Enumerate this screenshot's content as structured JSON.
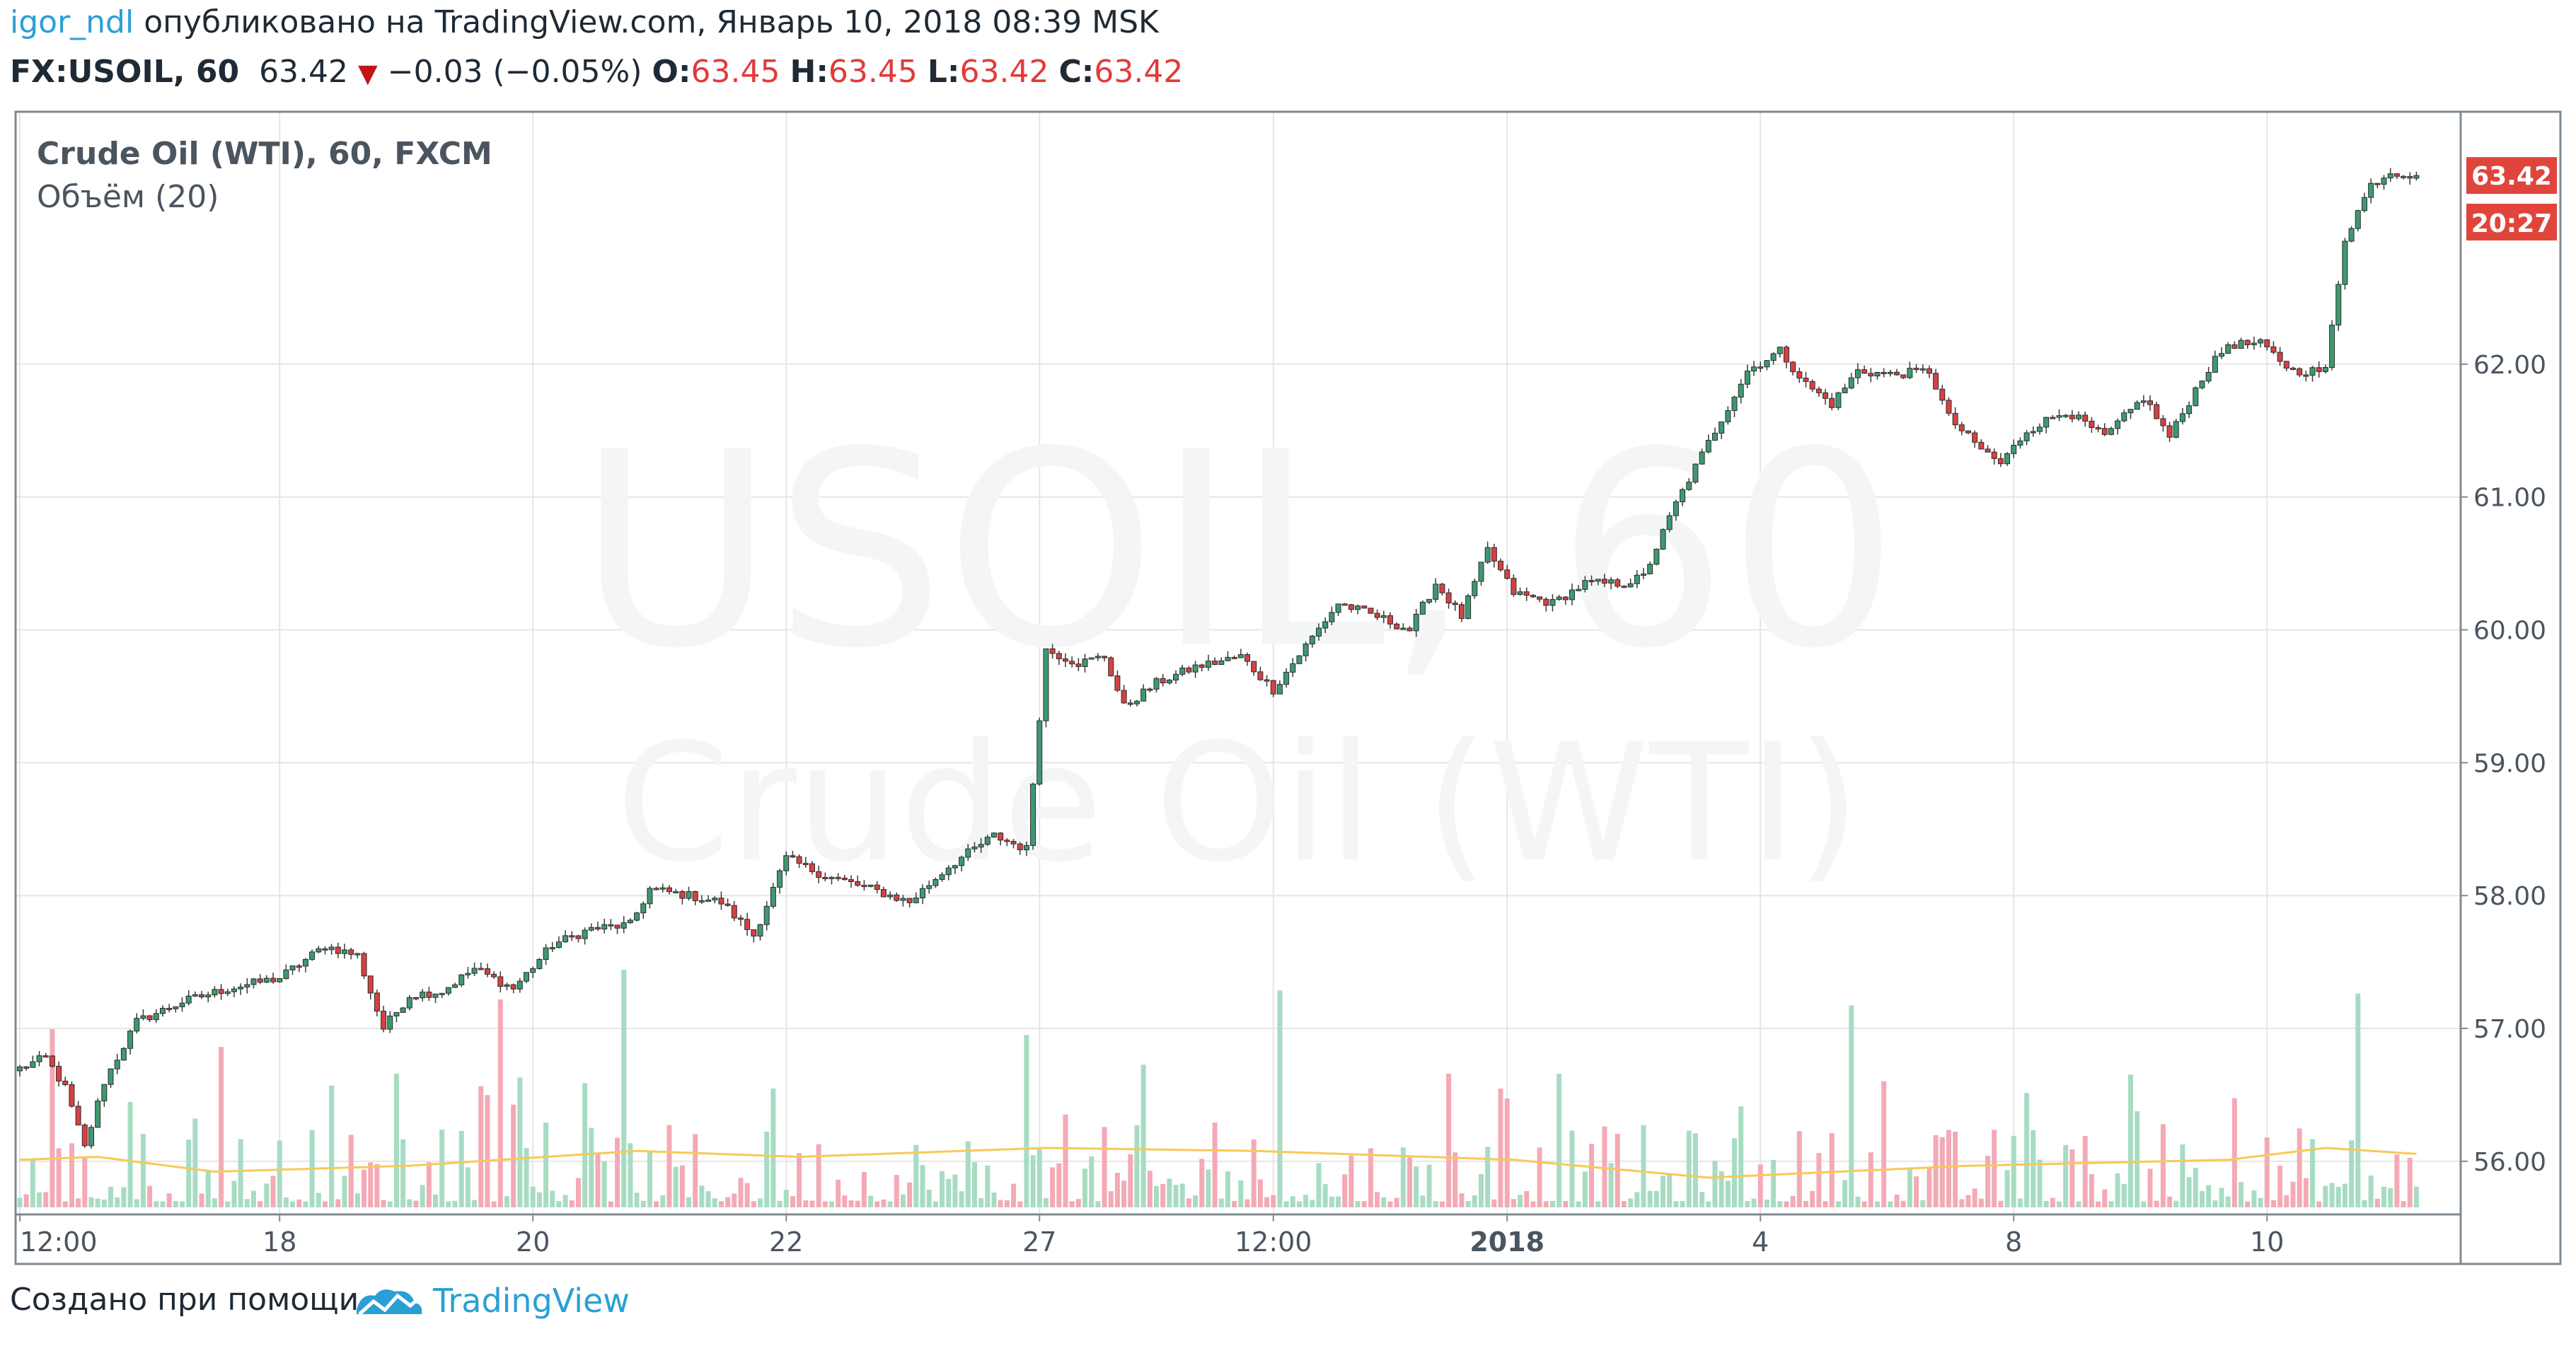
{
  "header": {
    "user": "igor_ndl",
    "published_text": "опубликовано на TradingView.com, Январь 10, 2018 08:39 MSK",
    "symbol": "FX:USOIL, 60",
    "price": "63.42",
    "change": "−0.03 (−0.05%)",
    "o_label": "O:",
    "o_value": "63.45",
    "h_label": "H:",
    "h_value": "63.45",
    "l_label": "L:",
    "l_value": "63.42",
    "c_label": "C:",
    "c_value": "63.42"
  },
  "legend": {
    "title": "Crude Oil (WTI), 60, FXCM",
    "volume": "Объём (20)"
  },
  "watermark": {
    "symbol": "USOIL, 60",
    "name": "Crude Oil (WTI)"
  },
  "price_badge": "63.42",
  "time_badge": "20:27",
  "footer": {
    "created_with": "Создано при помощи",
    "brand": "TradingView"
  },
  "colors": {
    "up": "#3d9970",
    "down": "#d64141",
    "up_volume": "#a7dcc3",
    "down_volume": "#f3aab5",
    "volume_ma": "#f7c958",
    "grid": "#e6e6e6",
    "badge": "#e0453c"
  },
  "chart_data": {
    "type": "candlestick",
    "interval": "60",
    "x_tick_labels": [
      "12:00",
      "18",
      "20",
      "22",
      "27",
      "12:00",
      "2018",
      "4",
      "8",
      "10"
    ],
    "y_tick_labels": [
      "56.00",
      "57.00",
      "58.00",
      "59.00",
      "60.00",
      "61.00",
      "62.00"
    ],
    "ylim": [
      55.6,
      63.9
    ],
    "grid": true,
    "close_path_keypoints": [
      [
        0,
        56.7
      ],
      [
        4,
        56.78
      ],
      [
        7,
        56.55
      ],
      [
        10,
        56.1
      ],
      [
        13,
        56.6
      ],
      [
        18,
        57.05
      ],
      [
        25,
        57.2
      ],
      [
        32,
        57.3
      ],
      [
        40,
        57.38
      ],
      [
        47,
        57.62
      ],
      [
        52,
        57.55
      ],
      [
        56,
        57.0
      ],
      [
        60,
        57.25
      ],
      [
        65,
        57.28
      ],
      [
        70,
        57.45
      ],
      [
        76,
        57.3
      ],
      [
        82,
        57.63
      ],
      [
        88,
        57.75
      ],
      [
        94,
        57.78
      ],
      [
        97,
        58.05
      ],
      [
        103,
        58.0
      ],
      [
        108,
        57.95
      ],
      [
        113,
        57.7
      ],
      [
        118,
        58.28
      ],
      [
        124,
        58.15
      ],
      [
        131,
        58.05
      ],
      [
        137,
        57.95
      ],
      [
        143,
        58.22
      ],
      [
        150,
        58.45
      ],
      [
        155,
        58.35
      ],
      [
        158,
        59.85
      ],
      [
        163,
        59.75
      ],
      [
        167,
        59.8
      ],
      [
        170,
        59.42
      ],
      [
        175,
        59.6
      ],
      [
        181,
        59.72
      ],
      [
        188,
        59.8
      ],
      [
        193,
        59.55
      ],
      [
        198,
        59.88
      ],
      [
        203,
        60.2
      ],
      [
        209,
        60.1
      ],
      [
        214,
        60.0
      ],
      [
        218,
        60.35
      ],
      [
        222,
        60.1
      ],
      [
        226,
        60.6
      ],
      [
        230,
        60.28
      ],
      [
        236,
        60.2
      ],
      [
        241,
        60.35
      ],
      [
        247,
        60.35
      ],
      [
        250,
        60.4
      ],
      [
        255,
        60.95
      ],
      [
        261,
        61.5
      ],
      [
        266,
        61.95
      ],
      [
        271,
        62.1
      ],
      [
        275,
        61.85
      ],
      [
        279,
        61.7
      ],
      [
        283,
        61.95
      ],
      [
        288,
        61.92
      ],
      [
        294,
        61.95
      ],
      [
        297,
        61.6
      ],
      [
        301,
        61.4
      ],
      [
        305,
        61.25
      ],
      [
        309,
        61.5
      ],
      [
        315,
        61.65
      ],
      [
        321,
        61.45
      ],
      [
        327,
        61.75
      ],
      [
        331,
        61.45
      ],
      [
        336,
        61.9
      ],
      [
        340,
        62.15
      ],
      [
        345,
        62.15
      ],
      [
        350,
        61.95
      ],
      [
        355,
        61.95
      ],
      [
        358,
        62.95
      ],
      [
        362,
        63.35
      ],
      [
        365,
        63.45
      ],
      [
        369,
        63.42
      ]
    ],
    "volume_ma_keypoints": [
      [
        0,
        16
      ],
      [
        12,
        17
      ],
      [
        30,
        12
      ],
      [
        60,
        14
      ],
      [
        95,
        19
      ],
      [
        120,
        17
      ],
      [
        158,
        20
      ],
      [
        190,
        19
      ],
      [
        230,
        16
      ],
      [
        260,
        10
      ],
      [
        300,
        14
      ],
      [
        340,
        16
      ],
      [
        355,
        20
      ],
      [
        369,
        18
      ]
    ],
    "volume_spikes": [
      [
        5,
        60
      ],
      [
        31,
        54
      ],
      [
        48,
        41
      ],
      [
        58,
        45
      ],
      [
        74,
        70
      ],
      [
        93,
        80
      ],
      [
        116,
        40
      ],
      [
        155,
        58
      ],
      [
        173,
        48
      ],
      [
        194,
        73
      ],
      [
        220,
        45
      ],
      [
        237,
        45
      ],
      [
        265,
        34
      ],
      [
        282,
        68
      ],
      [
        310,
        26
      ],
      [
        330,
        28
      ],
      [
        360,
        72
      ]
    ],
    "last_price": 63.42
  }
}
